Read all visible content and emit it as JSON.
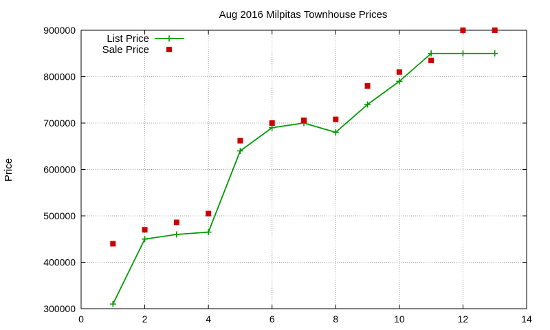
{
  "chart_data": {
    "type": "line",
    "title": "Aug 2016 Milpitas Townhouse Prices",
    "xlabel": "",
    "ylabel": "Price",
    "xlim": [
      0,
      14
    ],
    "ylim": [
      300000,
      900000
    ],
    "xticks": [
      0,
      2,
      4,
      6,
      8,
      10,
      12,
      14
    ],
    "yticks": [
      300000,
      400000,
      500000,
      600000,
      700000,
      800000,
      900000
    ],
    "x_tick_labels": [
      "0",
      "2",
      "4",
      "6",
      "8",
      "10",
      "12",
      "14"
    ],
    "y_tick_labels": [
      "300000",
      "400000",
      "500000",
      "600000",
      "700000",
      "800000",
      "900000"
    ],
    "grid": true,
    "legend_position": "top-left",
    "series": [
      {
        "name": "List Price",
        "style": "line-with-plus-markers",
        "color": "#009900",
        "x": [
          1,
          2,
          3,
          4,
          5,
          6,
          7,
          8,
          9,
          10,
          11,
          12,
          13
        ],
        "values": [
          310000,
          450000,
          460000,
          465000,
          640000,
          690000,
          700000,
          680000,
          740000,
          790000,
          850000,
          850000,
          850000
        ]
      },
      {
        "name": "Sale Price",
        "style": "square-markers",
        "color": "#cc0000",
        "x": [
          1,
          2,
          3,
          4,
          5,
          6,
          7,
          8,
          9,
          10,
          11,
          12,
          13
        ],
        "values": [
          440000,
          470000,
          486000,
          505000,
          662000,
          700000,
          706000,
          708000,
          780000,
          810000,
          835000,
          900000,
          900000
        ]
      }
    ]
  }
}
